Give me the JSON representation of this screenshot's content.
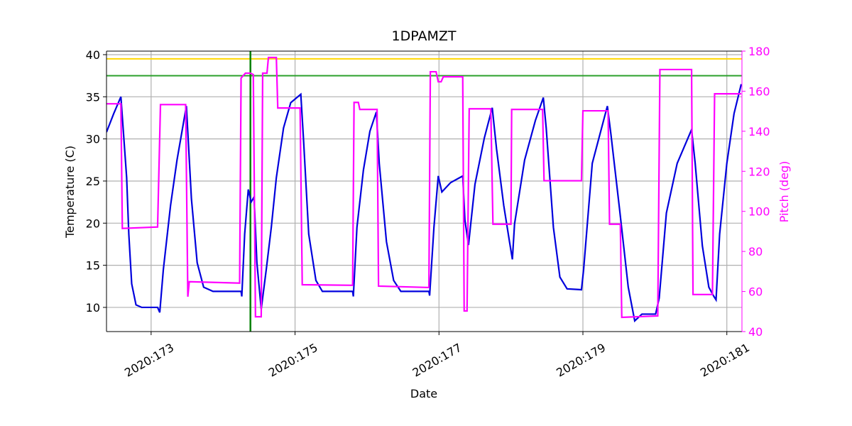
{
  "chart_data": {
    "type": "line",
    "title": "1DPAMZT",
    "xlabel": "Date",
    "ylabel": "Temperature (C)",
    "y2label": "Pitch (deg)",
    "y2color": "#ff00ff",
    "xlim": [
      172.38,
      181.21
    ],
    "ylim": [
      7.13,
      40.42
    ],
    "y2lim": [
      40,
      180
    ],
    "grid": true,
    "xticks": [
      {
        "value": 173,
        "label": "2020:173"
      },
      {
        "value": 175,
        "label": "2020:175"
      },
      {
        "value": 177,
        "label": "2020:177"
      },
      {
        "value": 179,
        "label": "2020:179"
      },
      {
        "value": 181,
        "label": "2020:181"
      }
    ],
    "yticks": [
      10,
      15,
      20,
      25,
      30,
      35,
      40
    ],
    "y2ticks": [
      40,
      60,
      80,
      100,
      120,
      140,
      160,
      180
    ],
    "reference_lines": [
      {
        "orientation": "horizontal",
        "value": 39.5,
        "color": "#ffd700"
      },
      {
        "orientation": "horizontal",
        "value": 37.5,
        "color": "#2ca02c"
      },
      {
        "orientation": "vertical",
        "value": 174.38,
        "color": "#008000"
      }
    ],
    "series": [
      {
        "name": "Temperature",
        "color": "#0000dd",
        "x": [
          172.38,
          172.48,
          172.58,
          172.66,
          172.69,
          172.73,
          172.79,
          172.87,
          173.09,
          173.12,
          173.17,
          173.27,
          173.36,
          173.49,
          173.56,
          173.64,
          173.73,
          173.86,
          174.25,
          174.26,
          174.3,
          174.35,
          174.39,
          174.43,
          174.47,
          174.53,
          174.6,
          174.67,
          174.74,
          174.84,
          174.94,
          175.08,
          175.12,
          175.19,
          175.29,
          175.38,
          175.8,
          175.81,
          175.86,
          175.95,
          176.04,
          176.13,
          176.17,
          176.27,
          176.37,
          176.47,
          176.86,
          176.87,
          176.93,
          176.99,
          177.04,
          177.16,
          177.33,
          177.36,
          177.41,
          177.5,
          177.63,
          177.74,
          177.8,
          177.9,
          177.98,
          178.02,
          178.05,
          178.19,
          178.34,
          178.45,
          178.49,
          178.59,
          178.68,
          178.78,
          178.98,
          179.01,
          179.13,
          179.34,
          179.39,
          179.51,
          179.63,
          179.72,
          179.82,
          180.01,
          180.06,
          180.16,
          180.31,
          180.51,
          180.56,
          180.66,
          180.75,
          180.82,
          180.85,
          180.9,
          181.0,
          181.1,
          181.2
        ],
        "values": [
          30.8,
          33.0,
          35.0,
          25.4,
          18.7,
          12.8,
          10.3,
          10.0,
          10.0,
          9.4,
          14.5,
          22.1,
          27.5,
          33.9,
          22.9,
          15.3,
          12.4,
          11.9,
          11.9,
          11.3,
          18.7,
          24.0,
          22.5,
          23.1,
          15.3,
          9.8,
          14.5,
          19.5,
          25.4,
          31.3,
          34.3,
          35.3,
          29.6,
          18.7,
          13.2,
          11.9,
          11.9,
          11.3,
          19.5,
          26.3,
          30.9,
          33.2,
          27.1,
          17.8,
          13.2,
          11.9,
          11.9,
          11.4,
          19.5,
          25.6,
          23.7,
          24.8,
          25.6,
          20.4,
          17.4,
          24.6,
          30.1,
          33.7,
          28.8,
          22.1,
          17.8,
          15.7,
          19.9,
          27.5,
          32.2,
          34.9,
          31.3,
          19.5,
          13.6,
          12.2,
          12.1,
          14.5,
          27.1,
          33.9,
          30.5,
          21.6,
          12.4,
          8.4,
          9.2,
          9.2,
          11.1,
          21.2,
          27.1,
          31.1,
          27.1,
          17.3,
          12.4,
          11.3,
          10.9,
          18.7,
          27.1,
          33.0,
          36.5
        ]
      },
      {
        "name": "Pitch",
        "color": "#ff00ff",
        "axis": "y2",
        "x": [
          172.38,
          172.58,
          172.6,
          173.09,
          173.13,
          173.48,
          173.51,
          173.53,
          174.23,
          174.25,
          174.31,
          174.38,
          174.42,
          174.45,
          174.53,
          174.55,
          174.61,
          174.63,
          174.74,
          174.76,
          175.07,
          175.1,
          175.8,
          175.82,
          175.88,
          175.9,
          176.14,
          176.16,
          176.86,
          176.88,
          176.96,
          176.99,
          177.03,
          177.06,
          177.33,
          177.35,
          177.39,
          177.42,
          177.72,
          177.75,
          178.0,
          178.01,
          178.44,
          178.46,
          178.98,
          179.0,
          179.35,
          179.37,
          179.52,
          179.54,
          180.04,
          180.07,
          180.51,
          180.53,
          180.8,
          180.83,
          181.2
        ],
        "values": [
          153.7,
          153.7,
          91.5,
          92.2,
          153.3,
          153.3,
          57.4,
          64.9,
          64.2,
          166.5,
          169.0,
          169.0,
          168.3,
          47.4,
          47.4,
          169.0,
          169.0,
          176.8,
          176.8,
          151.6,
          151.6,
          63.4,
          63.1,
          154.4,
          154.4,
          150.9,
          150.9,
          62.7,
          62.0,
          169.7,
          169.7,
          164.7,
          164.7,
          167.2,
          167.2,
          50.3,
          50.3,
          151.2,
          151.2,
          93.6,
          93.6,
          150.9,
          150.9,
          115.3,
          115.3,
          150.2,
          150.2,
          93.6,
          93.6,
          47.1,
          47.8,
          170.8,
          170.8,
          58.5,
          58.5,
          158.7,
          158.7
        ]
      }
    ]
  }
}
